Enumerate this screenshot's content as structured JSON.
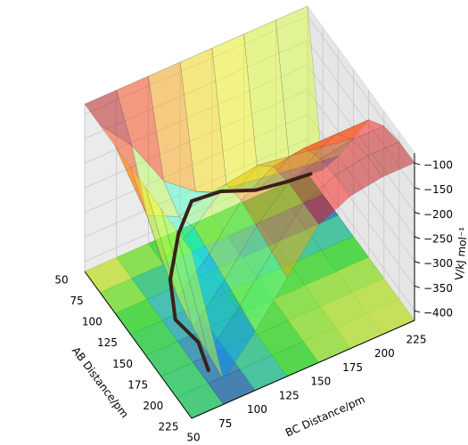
{
  "chart_data": {
    "type": "surface3d",
    "xlabel": "AB Distance/pm",
    "ylabel": "BC Distance/pm",
    "zlabel": "V/kJ mol⁻¹",
    "x": [
      50,
      75,
      100,
      125,
      150,
      175,
      200,
      225
    ],
    "y": [
      50,
      75,
      100,
      125,
      150,
      175,
      200,
      225
    ],
    "z": [
      [
        -80,
        -80,
        -80,
        -80,
        -80,
        -80,
        -80,
        -80
      ],
      [
        -80,
        -150,
        -250,
        -300,
        -330,
        -350,
        -360,
        -370
      ],
      [
        -80,
        -250,
        -280,
        -260,
        -270,
        -280,
        -290,
        -300
      ],
      [
        -80,
        -300,
        -260,
        -200,
        -190,
        -200,
        -210,
        -220
      ],
      [
        -80,
        -330,
        -270,
        -190,
        -150,
        -140,
        -140,
        -140
      ],
      [
        -80,
        -350,
        -280,
        -200,
        -140,
        -120,
        -110,
        -110
      ],
      [
        -80,
        -360,
        -290,
        -210,
        -140,
        -110,
        -100,
        -100
      ],
      [
        -80,
        -370,
        -300,
        -220,
        -140,
        -110,
        -100,
        -100
      ]
    ],
    "trajectory": {
      "color": "#3a2016",
      "x": [
        215,
        190,
        165,
        140,
        120,
        100,
        85,
        80,
        78,
        76
      ],
      "y": [
        68,
        72,
        66,
        74,
        90,
        110,
        140,
        170,
        195,
        215
      ],
      "z": [
        -360,
        -350,
        -340,
        -310,
        -270,
        -260,
        -300,
        -340,
        -355,
        -365
      ]
    },
    "xlim": [
      50,
      225
    ],
    "ylim": [
      50,
      225
    ],
    "zlim": [
      -420,
      -80
    ],
    "xticks": [
      50,
      75,
      100,
      125,
      150,
      175,
      200,
      225
    ],
    "yticks": [
      50,
      75,
      100,
      125,
      150,
      175,
      200,
      225
    ],
    "zticks": [
      {
        "value": -400,
        "label": "−400"
      },
      {
        "value": -350,
        "label": "−350"
      },
      {
        "value": -300,
        "label": "−300"
      },
      {
        "value": -250,
        "label": "−250"
      },
      {
        "value": -200,
        "label": "−200"
      },
      {
        "value": -150,
        "label": "−150"
      },
      {
        "value": -100,
        "label": "−100"
      }
    ],
    "grid": true
  }
}
